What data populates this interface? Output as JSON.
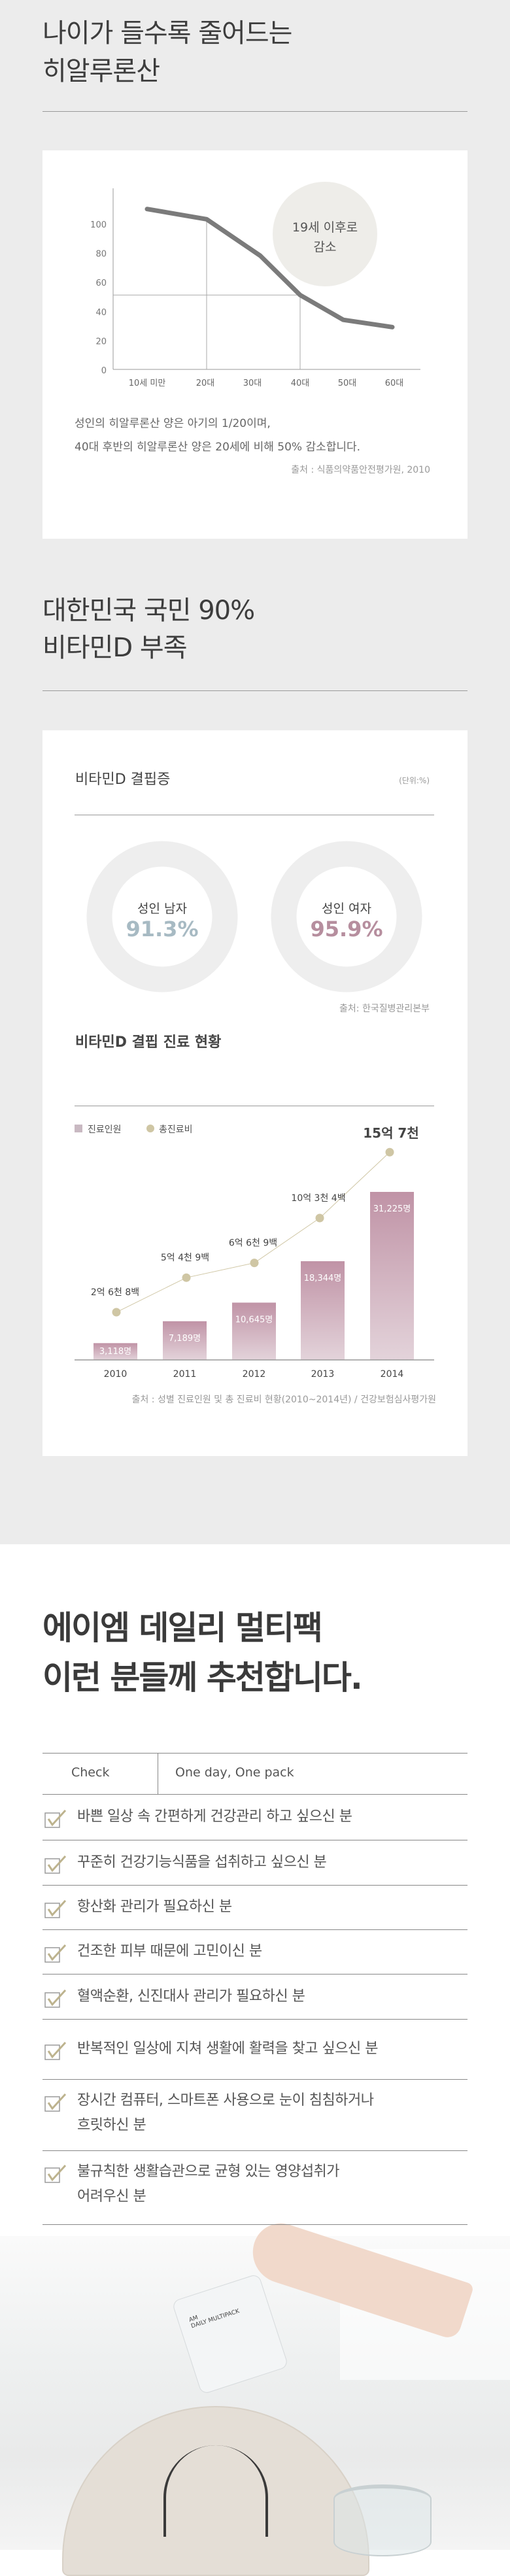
{
  "section1": {
    "title_lines": [
      "나이가 들수록 줄어드는",
      "히알루론산"
    ],
    "bubble_lines": [
      "19세 이후로",
      "감소"
    ],
    "caption_lines": [
      "성인의 히알루론산 양은 아기의 1/20이며,",
      "40대 후반의 히알루론산 양은 20세에 비해 50% 감소합니다."
    ],
    "source": "출처 : 식품의약품안전평가원, 2010"
  },
  "section2": {
    "title_lines": [
      "대한민국 국민 90%",
      "비타민D 부족"
    ],
    "deficiency_title": "비타민D 결핍증",
    "unit": "(단위:%)",
    "donuts": [
      {
        "label": "성인 남자",
        "value_text": "91.3%",
        "color": "#c5d2d8",
        "text_color": "#a7bac3"
      },
      {
        "label": "성인 여자",
        "value_text": "95.9%",
        "color": "#c9b9c2",
        "text_color": "#b68e9e"
      }
    ],
    "donut_source": "출처: 한국질병관리본부",
    "treatment_title": "비타민D 결핍 진료 현황",
    "legend": [
      "진료인원",
      "총진료비"
    ],
    "source": "출처 : 성별 진료인원 및 총 진료비 현황(2010~2014년) / 건강보험심사평가원"
  },
  "chart_data": [
    {
      "type": "line",
      "x": [
        "10세 미만",
        "20대",
        "30대",
        "40대",
        "50대",
        "60대"
      ],
      "values": [
        110,
        103,
        78,
        51,
        34,
        29
      ],
      "yticks": [
        "0",
        "20",
        "40",
        "60",
        "80",
        "100"
      ],
      "ylim": [
        0,
        120
      ],
      "color": "#7b7b7b",
      "annotation": "19세 이후로 감소"
    },
    {
      "type": "pie",
      "slices": [
        {
          "name": "성인 남자",
          "value": 91.3
        },
        {
          "name": "성인 여자",
          "value": 95.9
        }
      ]
    },
    {
      "type": "bar",
      "categories": [
        "2010",
        "2011",
        "2012",
        "2013",
        "2014"
      ],
      "series": [
        {
          "name": "진료인원",
          "values": [
            3118,
            7189,
            10645,
            18344,
            31225
          ],
          "labels": [
            "3,118명",
            "7,189명",
            "10,645명",
            "18,344명",
            "31,225명"
          ],
          "color": "#c093a6"
        },
        {
          "name": "총진료비",
          "type": "line",
          "values": [
            2.68,
            5.49,
            6.69,
            10.34,
            15.7
          ],
          "labels": [
            "2억 6천 8백",
            "5억 4천 9백",
            "6억 6천 9백",
            "10억 3천 4백",
            "15억 7천"
          ],
          "color": "#cfc6a4"
        }
      ]
    }
  ],
  "section3": {
    "title_lines": [
      "에이엠 데일리 멀티팩",
      "이런 분들께 추천합니다."
    ],
    "table_header": [
      "Check",
      "One day, One pack"
    ],
    "items": [
      [
        "바쁜 일상 속 간편하게 건강관리 하고 싶으신 분"
      ],
      [
        "꾸준히 건강기능식품을 섭취하고 싶으신 분"
      ],
      [
        "항산화 관리가 필요하신 분"
      ],
      [
        "건조한 피부 때문에 고민이신 분"
      ],
      [
        "혈액순환, 신진대사 관리가 필요하신 분"
      ],
      [
        "반복적인 일상에 지쳐 생활에 활력을 찾고 싶으신 분"
      ],
      [
        "장시간 컴퓨터, 스마트폰 사용으로 눈이 침침하거나",
        "흐릿하신 분"
      ],
      [
        "불규칙한 생활습관으로 균형 있는 영양섭취가",
        "어려우신 분"
      ]
    ],
    "pack_text": [
      "AM",
      "DAILY MULTIPACK"
    ]
  }
}
